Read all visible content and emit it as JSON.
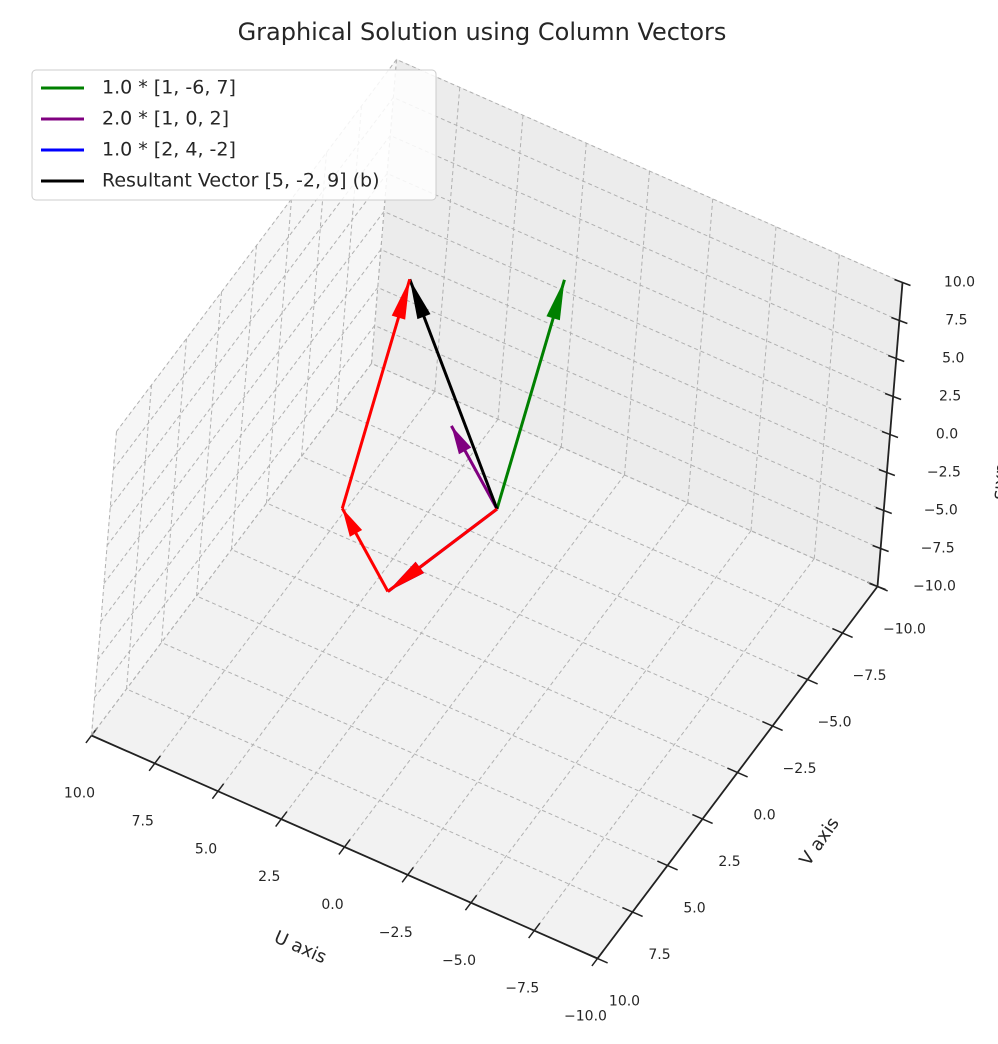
{
  "chart_data": {
    "type": "quiver3d",
    "title": "Graphical Solution using Column Vectors",
    "xlabel": "U axis",
    "ylabel": "V axis",
    "zlabel": "W axis",
    "xlim": [
      -10,
      10
    ],
    "ylim": [
      -10,
      10
    ],
    "zlim": [
      -10,
      10
    ],
    "xticks": [
      {
        "value": 10,
        "label": "10.0"
      },
      {
        "value": 7.5,
        "label": "7.5"
      },
      {
        "value": 5,
        "label": "5.0"
      },
      {
        "value": 2.5,
        "label": "2.5"
      },
      {
        "value": 0,
        "label": "0.0"
      },
      {
        "value": -2.5,
        "label": "−2.5"
      },
      {
        "value": -5,
        "label": "−5.0"
      },
      {
        "value": -7.5,
        "label": "−7.5"
      },
      {
        "value": -10,
        "label": "−10.0"
      }
    ],
    "yticks": [
      {
        "value": -10,
        "label": "−10.0"
      },
      {
        "value": -7.5,
        "label": "−7.5"
      },
      {
        "value": -5,
        "label": "−5.0"
      },
      {
        "value": -2.5,
        "label": "−2.5"
      },
      {
        "value": 0,
        "label": "0.0"
      },
      {
        "value": 2.5,
        "label": "2.5"
      },
      {
        "value": 5,
        "label": "5.0"
      },
      {
        "value": 7.5,
        "label": "7.5"
      },
      {
        "value": 10,
        "label": "10.0"
      }
    ],
    "zticks": [
      {
        "value": 10,
        "label": "10.0"
      },
      {
        "value": 7.5,
        "label": "7.5"
      },
      {
        "value": 5,
        "label": "5.0"
      },
      {
        "value": 2.5,
        "label": "2.5"
      },
      {
        "value": 0,
        "label": "0.0"
      },
      {
        "value": -2.5,
        "label": "−2.5"
      },
      {
        "value": -5,
        "label": "−5.0"
      },
      {
        "value": -7.5,
        "label": "−7.5"
      },
      {
        "value": -10,
        "label": "−10.0"
      }
    ],
    "grid": true,
    "legend": "upper left",
    "series": [
      {
        "name": "1.0 * [1, -6, 7]",
        "color": "green",
        "scale": 1.0,
        "vector": [
          1,
          -6,
          7
        ]
      },
      {
        "name": "2.0 * [1, 0, 2]",
        "color": "purple",
        "scale": 2.0,
        "vector": [
          1,
          0,
          2
        ]
      },
      {
        "name": "1.0 * [2, 4, -2]",
        "color": "blue",
        "scale": 1.0,
        "vector": [
          2,
          4,
          -2
        ]
      },
      {
        "name": "Resultant Vector [5, -2, 9] (b)",
        "color": "black",
        "scale": 1.0,
        "vector": [
          5,
          -2,
          9
        ]
      }
    ],
    "chain": {
      "color": "red",
      "points": [
        [
          0,
          0,
          0
        ],
        [
          2,
          4,
          -2
        ],
        [
          4,
          4,
          2
        ],
        [
          5,
          -2,
          9
        ]
      ]
    }
  }
}
